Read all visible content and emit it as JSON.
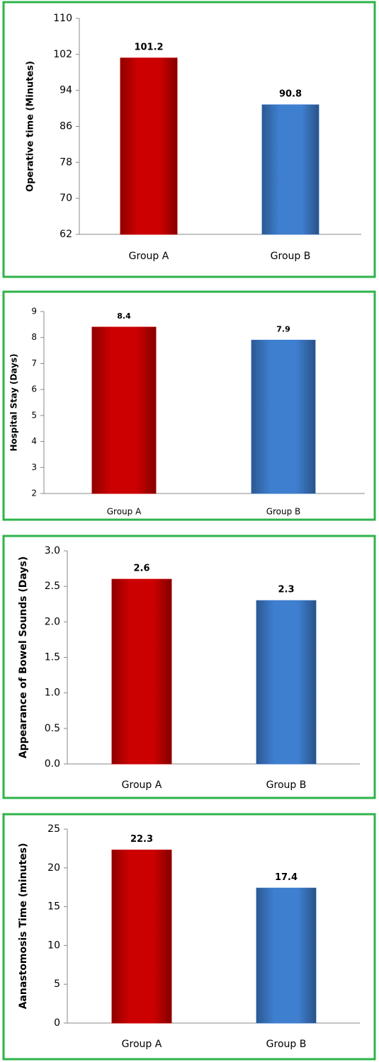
{
  "chart_data": [
    {
      "type": "bar",
      "ylabel": "Operative time (Minutes)",
      "categories": [
        "Group A",
        "Group B"
      ],
      "values": [
        101.2,
        90.8
      ],
      "colors": [
        "#cc0000",
        "#3f7fd0"
      ],
      "ylim": [
        62,
        110
      ],
      "yticks": [
        62,
        70,
        78,
        86,
        94,
        102,
        110
      ]
    },
    {
      "type": "bar",
      "ylabel": "Hospital Stay (Days)",
      "categories": [
        "Group A",
        "Group B"
      ],
      "values": [
        8.4,
        7.9
      ],
      "colors": [
        "#cc0000",
        "#3f7fd0"
      ],
      "ylim": [
        2,
        9
      ],
      "yticks": [
        2,
        3,
        4,
        5,
        6,
        7,
        8,
        9
      ]
    },
    {
      "type": "bar",
      "ylabel": "Appearance of Bowel Sounds (Days)",
      "categories": [
        "Group A",
        "Group B"
      ],
      "values": [
        2.6,
        2.3
      ],
      "colors": [
        "#cc0000",
        "#3f7fd0"
      ],
      "ylim": [
        0,
        3
      ],
      "yticks": [
        {
          "value": 0,
          "label": "0.0"
        },
        0.5,
        {
          "value": 1,
          "label": "1.0"
        },
        1.5,
        {
          "value": 2,
          "label": "2.0"
        },
        2.5,
        {
          "value": 3,
          "label": "3.0"
        }
      ]
    },
    {
      "type": "bar",
      "ylabel": "Aanastomosis Time (minutes)",
      "categories": [
        "Group A",
        "Group B"
      ],
      "values": [
        22.3,
        17.4
      ],
      "colors": [
        "#cc0000",
        "#3f7fd0"
      ],
      "ylim": [
        0,
        25
      ],
      "yticks": [
        0,
        5,
        10,
        15,
        20,
        25
      ]
    }
  ]
}
